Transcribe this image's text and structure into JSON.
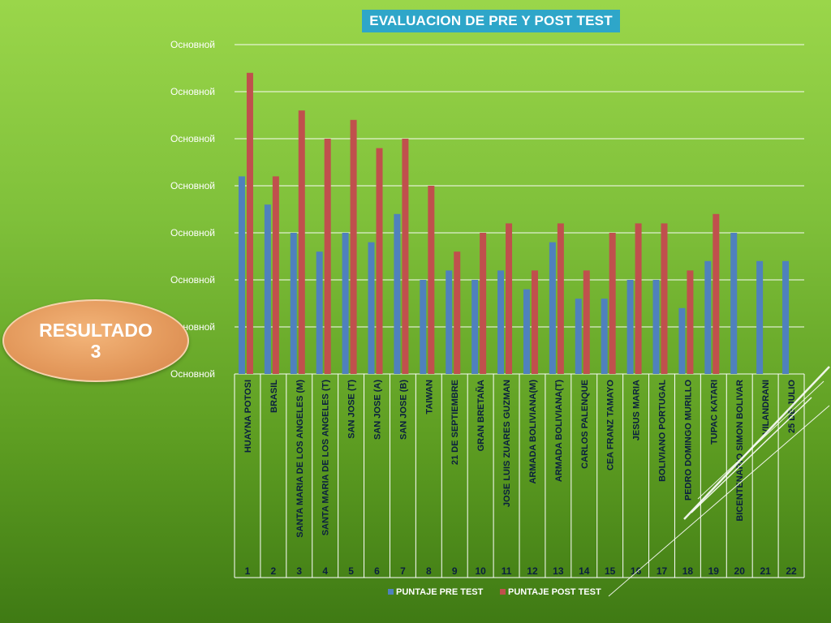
{
  "slide": {
    "badge_line1": "RESULTADO",
    "badge_line2": "3"
  },
  "chart_data": {
    "type": "bar",
    "title": "EVALUACION DE PRE Y POST TEST",
    "y_tick_labels": [
      "Основной",
      "Основной",
      "Основной",
      "Основной",
      "Основной",
      "Основной",
      "Основной",
      "Основной"
    ],
    "ylim": [
      0,
      7
    ],
    "grid": true,
    "legend_position": "bottom",
    "categories": [
      {
        "num": "1",
        "name": "HUAYNA POTOSI"
      },
      {
        "num": "2",
        "name": "BRASIL"
      },
      {
        "num": "3",
        "name": "SANTA MARIA DE LOS ANGELES (M)"
      },
      {
        "num": "4",
        "name": "SANTA MARIA DE LOS ANGELES (T)"
      },
      {
        "num": "5",
        "name": "SAN JOSE (T)"
      },
      {
        "num": "6",
        "name": "SAN JOSE (A)"
      },
      {
        "num": "7",
        "name": "SAN JOSE (B)"
      },
      {
        "num": "8",
        "name": "TAIWAN"
      },
      {
        "num": "9",
        "name": "21 DE SEPTIEMBRE"
      },
      {
        "num": "10",
        "name": "GRAN BRETAÑA"
      },
      {
        "num": "11",
        "name": "JOSE LUIS ZUARES GUZMAN"
      },
      {
        "num": "12",
        "name": "ARMADA BOLIVIANA(M)"
      },
      {
        "num": "13",
        "name": "ARMADA BOLIVIANA(T)"
      },
      {
        "num": "14",
        "name": "CARLOS PALENQUE"
      },
      {
        "num": "15",
        "name": "CEA FRANZ TAMAYO"
      },
      {
        "num": "16",
        "name": "JESUS MARIA"
      },
      {
        "num": "17",
        "name": "BOLIVIANO PORTUGAL"
      },
      {
        "num": "18",
        "name": "PEDRO DOMINGO MURILLO"
      },
      {
        "num": "19",
        "name": "TUPAC KATARI"
      },
      {
        "num": "20",
        "name": "BICENTENARIO SIMON BOLIVAR"
      },
      {
        "num": "21",
        "name": "VILANDRANI"
      },
      {
        "num": "22",
        "name": "25 DE JULIO"
      }
    ],
    "series": [
      {
        "name": "PUNTAJE  PRE TEST",
        "color": "#4f81bd",
        "values": [
          4.2,
          3.6,
          3.0,
          2.6,
          3.0,
          2.8,
          3.4,
          2.0,
          2.2,
          2.0,
          2.2,
          1.8,
          2.8,
          1.6,
          1.6,
          2.0,
          2.0,
          1.4,
          2.4,
          3.0,
          2.4,
          2.4
        ]
      },
      {
        "name": "PUNTAJE  POST TEST",
        "color": "#c0504d",
        "values": [
          6.4,
          4.2,
          5.6,
          5.0,
          5.4,
          4.8,
          5.0,
          4.0,
          2.6,
          3.0,
          3.2,
          2.2,
          3.2,
          2.2,
          3.0,
          3.2,
          3.2,
          2.2,
          3.4,
          null,
          null,
          null
        ]
      }
    ]
  }
}
